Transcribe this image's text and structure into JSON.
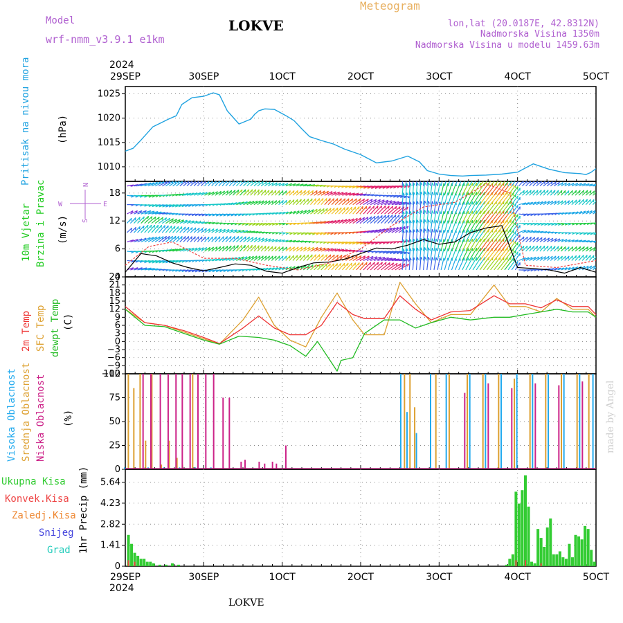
{
  "header": {
    "model_label": "Model",
    "model_name": "wrf-nmm_v3.9.1 e1km",
    "location": "LOKVE",
    "title": "Meteogram",
    "lonlat": "lon,lat (20.0187E, 42.8312N)",
    "elevation": "Nadmorska Visina 1350m",
    "model_elevation": "Nadmorska Visina u modelu 1459.63m",
    "footer_location": "LOKVE",
    "credit": "made by Angel"
  },
  "colors": {
    "pressure": "#1fa2e0",
    "wind_green": "#22cc22",
    "temp2m": "#ee3333",
    "sfc_temp": "#dda030",
    "dewpt": "#22bb22",
    "high_cloud": "#22aaee",
    "mid_cloud": "#dda030",
    "low_cloud": "#cc2288",
    "total_precip": "#33cc33",
    "conv_precip": "#ee4444",
    "frozen_precip": "#ee8833",
    "snow": "#4444dd",
    "hail": "#22ccbb",
    "model_purple": "#b060d0",
    "title_orange": "#e8b060"
  },
  "chart_data": [
    {
      "type": "line",
      "panel": "pressure",
      "ylabel_1": "Pritisak na nivou mora",
      "ylabel_2": "(hPa)",
      "ylim": [
        1007,
        1026.5
      ],
      "yticks": [
        "1010",
        "1015",
        "1020",
        "1025"
      ],
      "grid": true,
      "series": [
        {
          "name": "Pritisak na nivou mora",
          "x": [
            0,
            0.1,
            0.2,
            0.35,
            0.45,
            0.55,
            0.65,
            0.72,
            0.85,
            1.0,
            1.12,
            1.2,
            1.3,
            1.45,
            1.6,
            1.65,
            1.7,
            1.78,
            1.9,
            2.05,
            2.15,
            2.25,
            2.35,
            2.5,
            2.65,
            2.8,
            3.0,
            3.2,
            3.4,
            3.6,
            3.75,
            3.85,
            4.0,
            4.15,
            4.3,
            4.4,
            4.6,
            4.8,
            5.0,
            5.2,
            5.4,
            5.6,
            5.8,
            5.87,
            5.93,
            6.0
          ],
          "values": [
            1013.2,
            1013.8,
            1015.5,
            1018.2,
            1019,
            1019.8,
            1020.5,
            1022.8,
            1024.2,
            1024.5,
            1025.2,
            1024.8,
            1021.5,
            1018.8,
            1019.8,
            1020.8,
            1021.5,
            1021.9,
            1021.8,
            1020.5,
            1019.5,
            1017.8,
            1016.2,
            1015.4,
            1014.7,
            1013.6,
            1012.5,
            1010.8,
            1011.2,
            1012.2,
            1011,
            1009.2,
            1008.5,
            1008.2,
            1008.1,
            1008.2,
            1008.3,
            1008.5,
            1008.9,
            1010.6,
            1009.5,
            1008.8,
            1008.6,
            1008.4,
            1008.8,
            1009.6
          ]
        }
      ]
    },
    {
      "type": "line",
      "panel": "wind",
      "ylabel_1": "10m Vjetar",
      "ylabel_2": "Brzina i Pravac",
      "ylabel_3": "(m/s)",
      "compass": {
        "n": "N",
        "s": "S",
        "e": "E",
        "w": "W"
      },
      "ylim": [
        0,
        20.5
      ],
      "yticks": [
        "0",
        "6",
        "12",
        "18"
      ],
      "grid": true,
      "series": [
        {
          "name": "brzina",
          "x": [
            0,
            0.2,
            0.4,
            0.6,
            0.8,
            1.0,
            1.2,
            1.4,
            1.6,
            1.8,
            2.0,
            2.2,
            2.4,
            2.6,
            2.8,
            3.0,
            3.2,
            3.4,
            3.6,
            3.8,
            4.0,
            4.2,
            4.4,
            4.6,
            4.8,
            5.0,
            5.2,
            5.4,
            5.6,
            5.8,
            6.0
          ],
          "values": [
            1.0,
            5.0,
            4.5,
            3.0,
            2.0,
            1.3,
            2.0,
            2.8,
            2.5,
            1.2,
            0.8,
            2.0,
            3.0,
            3.2,
            3.8,
            5.0,
            6.2,
            6.0,
            6.8,
            8.0,
            7.0,
            7.5,
            9.5,
            10.5,
            11.0,
            2.0,
            1.8,
            1.5,
            0.8,
            2.0,
            1.0
          ]
        },
        {
          "name": "udari",
          "x": [
            0,
            0.3,
            0.6,
            1.0,
            1.4,
            1.8,
            2.2,
            2.6,
            3.0,
            3.4,
            3.8,
            4.2,
            4.6,
            4.9,
            5.1,
            5.5,
            6.0
          ],
          "values": [
            2.5,
            6.5,
            7.5,
            4.0,
            4.0,
            2.5,
            1.5,
            3.0,
            6.0,
            11.0,
            15.0,
            16.0,
            20.0,
            18.0,
            2.5,
            2.0,
            3.5
          ]
        }
      ]
    },
    {
      "type": "line",
      "panel": "temperature",
      "ylabel_1": "2m Temp",
      "ylabel_2": "SFC Temp",
      "ylabel_3": "dewpt Temp",
      "ylabel_4": "(C)",
      "ylim": [
        -12,
        24
      ],
      "yticks": [
        "−12",
        "−9",
        "−6",
        "−3",
        "0",
        "3",
        "6",
        "9",
        "12",
        "15",
        "18",
        "21",
        "24"
      ],
      "grid": true,
      "series": [
        {
          "name": "2m Temp",
          "x": [
            0,
            0.25,
            0.5,
            0.75,
            1.0,
            1.2,
            1.5,
            1.7,
            1.9,
            2.1,
            2.3,
            2.5,
            2.7,
            2.9,
            3.05,
            3.3,
            3.5,
            3.7,
            3.9,
            4.15,
            4.4,
            4.7,
            4.9,
            5.1,
            5.3,
            5.5,
            5.7,
            5.9,
            6.0
          ],
          "values": [
            13,
            7,
            6,
            4,
            1.5,
            -0.8,
            5,
            9.5,
            5,
            2.5,
            2.5,
            6,
            14.5,
            10,
            8.5,
            8.5,
            17,
            12,
            8,
            11,
            11.5,
            17,
            14,
            14,
            12.5,
            15.5,
            13,
            13,
            10
          ]
        },
        {
          "name": "SFC Temp",
          "x": [
            0,
            0.25,
            0.5,
            0.75,
            1.0,
            1.2,
            1.5,
            1.7,
            1.9,
            2.1,
            2.3,
            2.5,
            2.7,
            2.9,
            3.05,
            3.3,
            3.5,
            3.7,
            3.9,
            4.15,
            4.4,
            4.7,
            4.9,
            5.1,
            5.3,
            5.5,
            5.7,
            5.9,
            6.0
          ],
          "values": [
            12,
            7,
            6,
            3.5,
            1,
            -1,
            8,
            16.5,
            6,
            0.5,
            -2,
            9,
            18,
            8,
            2.5,
            2.5,
            22,
            14,
            7,
            10,
            10,
            21,
            13,
            13,
            11,
            16,
            12,
            12,
            9
          ]
        },
        {
          "name": "dewpt Temp",
          "x": [
            0,
            0.25,
            0.5,
            0.75,
            1.0,
            1.2,
            1.45,
            1.7,
            1.9,
            2.1,
            2.3,
            2.45,
            2.7,
            2.75,
            2.9,
            3.05,
            3.3,
            3.5,
            3.7,
            3.9,
            4.15,
            4.4,
            4.7,
            4.9,
            5.1,
            5.3,
            5.5,
            5.7,
            5.9,
            6.0
          ],
          "values": [
            12,
            6,
            5.5,
            3,
            0.5,
            -1,
            2,
            1.5,
            0.5,
            -1.5,
            -5.5,
            0,
            -11,
            -7,
            -6,
            3,
            8,
            8,
            5,
            7,
            9,
            8,
            9,
            9,
            10,
            11,
            12,
            11,
            11,
            9
          ]
        }
      ]
    },
    {
      "type": "bar",
      "panel": "clouds",
      "ylabel_1": "Visoka Oblacnost",
      "ylabel_2": "Srednja Oblacnost",
      "ylabel_3": "Niska Oblacnost",
      "ylabel_4": "(%)",
      "ylim": [
        0,
        100
      ],
      "yticks": [
        "0",
        "25",
        "50",
        "75",
        "100"
      ],
      "grid": true,
      "series": [
        {
          "name": "Visoka Oblacnost",
          "x": [
            0,
            0.3,
            0.5,
            0.7,
            0.9,
            1.1,
            3.52,
            3.6,
            3.72,
            3.9,
            4.1,
            4.4,
            4.6,
            4.8,
            5.0,
            5.2,
            5.4,
            5.6,
            5.8,
            5.97
          ],
          "values": [
            2,
            2,
            2,
            2,
            2,
            2,
            100,
            60,
            38,
            100,
            100,
            100,
            100,
            100,
            100,
            100,
            100,
            100,
            100,
            100
          ]
        },
        {
          "name": "Srednja Oblacnost",
          "x": [
            0.03,
            0.1,
            0.18,
            0.25,
            0.33,
            0.45,
            0.55,
            0.65,
            0.72,
            0.85,
            3.55,
            3.62,
            3.68,
            3.95,
            4.12,
            4.35,
            4.55,
            4.75,
            4.95,
            5.15,
            5.35,
            5.55,
            5.75,
            5.9
          ],
          "values": [
            100,
            85,
            100,
            30,
            100,
            5,
            30,
            12,
            5,
            100,
            100,
            100,
            65,
            100,
            100,
            100,
            100,
            100,
            95,
            100,
            100,
            100,
            100,
            100
          ]
        },
        {
          "name": "Niska Oblacnost",
          "x": [
            0.2,
            0.3,
            0.42,
            0.52,
            0.62,
            0.7,
            0.8,
            0.9,
            1.0,
            1.1,
            1.22,
            1.3,
            1.45,
            1.5,
            1.68,
            1.75,
            1.85,
            1.9,
            2.02,
            4.3,
            4.6,
            4.9,
            5.2,
            5.5,
            5.8
          ],
          "values": [
            100,
            100,
            100,
            100,
            100,
            100,
            100,
            100,
            100,
            100,
            75,
            75,
            8,
            10,
            8,
            6,
            8,
            6,
            25,
            80,
            90,
            85,
            90,
            88,
            92
          ]
        }
      ]
    },
    {
      "type": "bar",
      "panel": "precipitation",
      "ylabel_1": "1hr Precip (mm)",
      "legend": [
        "Ukupna Kisa",
        "Konvek.Kisa",
        "Zaledj.Kisa",
        "Snijeg",
        "Grad"
      ],
      "ylim": [
        0,
        6.5
      ],
      "yticks": [
        "0",
        "1.41",
        "2.82",
        "4.23",
        "5.64"
      ],
      "grid": true,
      "series": [
        {
          "name": "Ukupna Kisa",
          "x": [
            0.04,
            0.08,
            0.12,
            0.16,
            0.2,
            0.24,
            0.28,
            0.32,
            0.36,
            0.44,
            0.52,
            0.6,
            0.68,
            4.86,
            4.9,
            4.94,
            4.98,
            5.02,
            5.06,
            5.1,
            5.14,
            5.18,
            5.22,
            5.26,
            5.3,
            5.34,
            5.38,
            5.42,
            5.46,
            5.5,
            5.54,
            5.58,
            5.62,
            5.66,
            5.7,
            5.74,
            5.78,
            5.82,
            5.86,
            5.9,
            5.94,
            5.98
          ],
          "values": [
            2.1,
            1.5,
            0.9,
            0.7,
            0.5,
            0.5,
            0.3,
            0.3,
            0.2,
            0.1,
            0.1,
            0.2,
            0.1,
            0.1,
            0.5,
            0.8,
            5.0,
            4.2,
            5.1,
            6.1,
            4.0,
            0.3,
            0.2,
            2.5,
            1.9,
            1.3,
            2.6,
            3.2,
            0.8,
            0.8,
            1.0,
            0.6,
            0.5,
            1.5,
            0.6,
            2.1,
            2.0,
            1.8,
            2.7,
            2.5,
            1.1,
            0.3
          ]
        },
        {
          "name": "Konvek.Kisa",
          "x": [
            0.04,
            0.12,
            4.98,
            5.1,
            5.3
          ],
          "values": [
            0.4,
            0.3,
            0.4,
            0.4,
            0.2
          ]
        }
      ]
    }
  ],
  "x_axis": {
    "year": "2024",
    "ticks": [
      "29SEP",
      "30SEP",
      "1OCT",
      "2OCT",
      "3OCT",
      "4OCT",
      "5OCT"
    ]
  }
}
